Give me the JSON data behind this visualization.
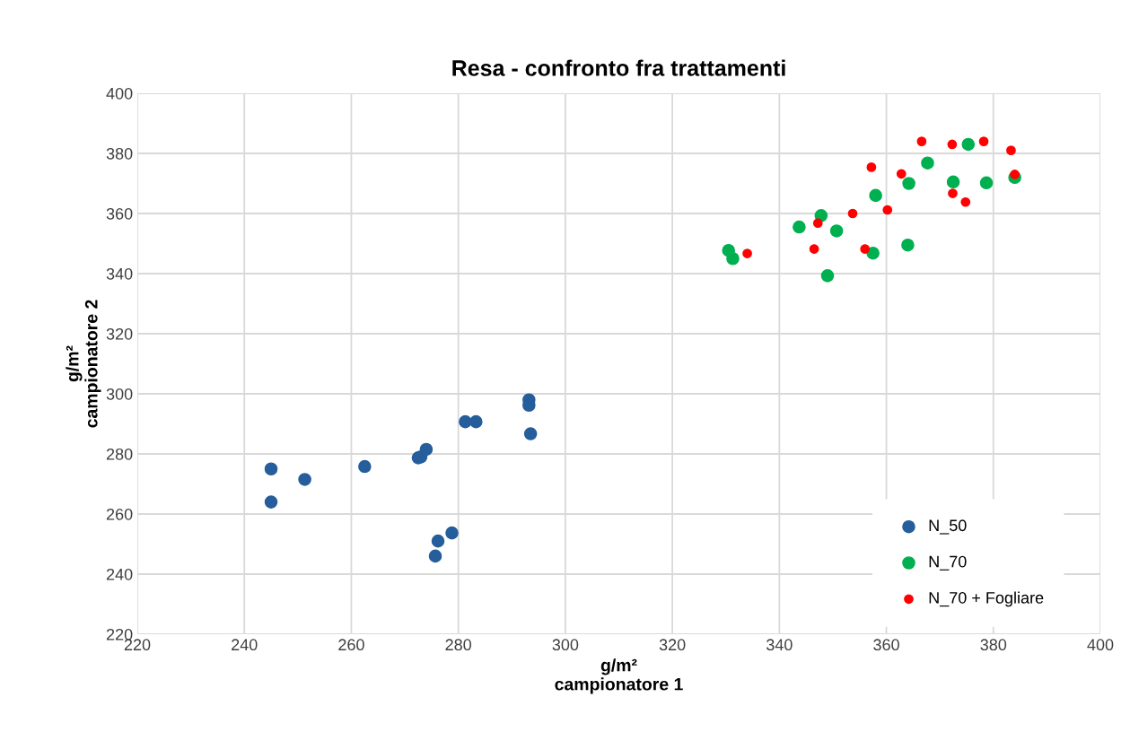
{
  "chart_data": {
    "type": "scatter",
    "title": "Resa - confronto fra trattamenti",
    "xlabel": "g/m²\ncampionatore 1",
    "ylabel": "g/m²\ncampionatore 2",
    "xlim": [
      220,
      400
    ],
    "xticks": [
      220,
      240,
      260,
      280,
      300,
      320,
      340,
      360,
      380,
      400
    ],
    "ylim": [
      220,
      400
    ],
    "yticks": [
      220,
      240,
      260,
      280,
      300,
      320,
      340,
      360,
      380,
      400
    ],
    "grid": true,
    "legend": "bottom right",
    "marker": "circle",
    "series": [
      {
        "name": "N_50",
        "color": "#255e9b",
        "x": [
          245,
          245,
          251.3,
          262.5,
          272.5,
          273,
          274,
          275.7,
          276.2,
          278.8,
          281.3,
          283.3,
          293.2,
          293.2,
          293.5
        ],
        "values": [
          275,
          264,
          271.5,
          275.8,
          278.7,
          279,
          281.5,
          246,
          251,
          253.7,
          290.7,
          290.7,
          298,
          296.2,
          286.7
        ]
      },
      {
        "name": "N_70",
        "color": "#00b050",
        "x": [
          330.5,
          331.3,
          343.7,
          347.8,
          349,
          350.7,
          357.5,
          358,
          364,
          364.2,
          367.7,
          372.5,
          375.3,
          378.7,
          384
        ],
        "values": [
          347.7,
          345,
          355.5,
          359.3,
          339.3,
          354.2,
          346.8,
          366,
          349.5,
          370,
          376.8,
          370.5,
          383,
          370.2,
          372
        ]
      },
      {
        "name": "N_70 + Fogliare",
        "color": "#ff0000",
        "x": [
          334,
          346.5,
          347.2,
          353.7,
          356,
          357.2,
          360.2,
          362.8,
          366.6,
          372.3,
          372.4,
          374.8,
          378.2,
          383.3,
          384
        ],
        "values": [
          346.7,
          348.2,
          356.8,
          360,
          348.2,
          375.4,
          361.2,
          373.2,
          384,
          383,
          366.7,
          363.8,
          384,
          381,
          373
        ]
      }
    ]
  }
}
